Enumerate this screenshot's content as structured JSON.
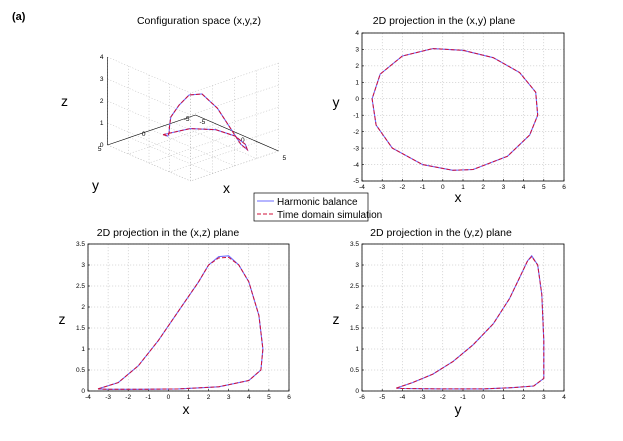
{
  "panel_label": "(a)",
  "legend": {
    "hb_label": "Harmonic balance",
    "td_label": "Time domain simulation",
    "hb_color": "#6b6bff",
    "td_color": "#d0103a"
  },
  "chart_data": [
    {
      "type": "line",
      "title": "Configuration space (x,y,z)",
      "projection": "3d",
      "xlabel": "x",
      "ylabel": "y",
      "zlabel": "z",
      "xlim": [
        -5,
        5
      ],
      "ylim": [
        -5,
        5
      ],
      "zlim": [
        0,
        4
      ],
      "xticks": [
        "-5",
        "0",
        "5"
      ],
      "yticks": [
        "-5",
        "0",
        "5"
      ],
      "zticks": [
        "0",
        "1",
        "2",
        "3",
        "4"
      ],
      "grid": true,
      "series": [
        {
          "name": "Harmonic balance",
          "x": [
            -3.5,
            -2.5,
            -1.5,
            -0.5,
            0.5,
            1.5,
            2.5,
            3.2,
            4.0,
            4.6,
            4.7,
            4.0,
            2.5,
            0.5,
            -1.5,
            -3.0,
            -3.5
          ],
          "y": [
            0.1,
            0.5,
            1.3,
            2.2,
            3.0,
            3.0,
            2.8,
            2.0,
            1.0,
            0.0,
            -1.0,
            -2.4,
            -3.6,
            -4.3,
            -4.0,
            -2.5,
            0.1
          ],
          "z": [
            0.05,
            0.2,
            0.6,
            1.2,
            1.9,
            2.6,
            3.2,
            3.25,
            2.6,
            1.6,
            0.8,
            0.25,
            0.08,
            0.04,
            0.04,
            0.05,
            0.05
          ]
        },
        {
          "name": "Time domain simulation",
          "x": [
            -3.5,
            -2.5,
            -1.5,
            -0.5,
            0.5,
            1.5,
            2.5,
            3.2,
            4.0,
            4.6,
            4.7,
            4.0,
            2.5,
            0.5,
            -1.5,
            -3.0,
            -3.5
          ],
          "y": [
            0.1,
            0.5,
            1.3,
            2.2,
            3.0,
            3.0,
            2.8,
            2.0,
            1.0,
            0.0,
            -1.0,
            -2.4,
            -3.6,
            -4.3,
            -4.0,
            -2.5,
            0.1
          ],
          "z": [
            0.05,
            0.2,
            0.6,
            1.2,
            1.9,
            2.6,
            3.2,
            3.25,
            2.6,
            1.6,
            0.8,
            0.25,
            0.08,
            0.04,
            0.04,
            0.05,
            0.05
          ]
        }
      ]
    },
    {
      "type": "line",
      "title": "2D projection in the (x,y) plane",
      "xlabel": "x",
      "ylabel": "y",
      "xlim": [
        -4,
        6
      ],
      "ylim": [
        -5,
        4
      ],
      "xticks": [
        "-4",
        "-3",
        "-2",
        "-1",
        "0",
        "1",
        "2",
        "3",
        "4",
        "5",
        "6"
      ],
      "yticks": [
        "-5",
        "-4",
        "-3",
        "-2",
        "-1",
        "0",
        "1",
        "2",
        "3",
        "4"
      ],
      "grid": true,
      "series": [
        {
          "name": "Harmonic balance",
          "x": [
            -0.5,
            1.0,
            2.5,
            3.8,
            4.6,
            4.7,
            4.3,
            3.2,
            1.5,
            0.5,
            -1.0,
            -2.5,
            -3.3,
            -3.5,
            -3.1,
            -2.0,
            -0.5
          ],
          "y": [
            3.05,
            2.95,
            2.5,
            1.6,
            0.4,
            -1.0,
            -2.2,
            -3.5,
            -4.3,
            -4.35,
            -4.0,
            -3.0,
            -1.6,
            0.0,
            1.5,
            2.6,
            3.05
          ]
        },
        {
          "name": "Time domain simulation",
          "x": [
            -0.5,
            1.0,
            2.5,
            3.8,
            4.6,
            4.7,
            4.3,
            3.2,
            1.5,
            0.5,
            -1.0,
            -2.5,
            -3.3,
            -3.5,
            -3.1,
            -2.0,
            -0.5
          ],
          "y": [
            3.05,
            2.95,
            2.5,
            1.6,
            0.4,
            -1.0,
            -2.2,
            -3.5,
            -4.3,
            -4.35,
            -4.0,
            -3.0,
            -1.6,
            0.0,
            1.5,
            2.6,
            3.05
          ]
        }
      ]
    },
    {
      "type": "line",
      "title": "2D projection in the (x,z) plane",
      "xlabel": "x",
      "ylabel": "z",
      "xlim": [
        -4,
        6
      ],
      "ylim": [
        0,
        3.5
      ],
      "xticks": [
        "-4",
        "-3",
        "-2",
        "-1",
        "0",
        "1",
        "2",
        "3",
        "4",
        "5",
        "6"
      ],
      "yticks": [
        "0",
        "0.5",
        "1",
        "1.5",
        "2",
        "2.5",
        "3",
        "3.5"
      ],
      "grid": true,
      "series": [
        {
          "name": "Harmonic balance",
          "x": [
            -3.5,
            -2.5,
            -1.5,
            -0.5,
            0.5,
            1.5,
            2.0,
            2.5,
            3.0,
            3.5,
            4.0,
            4.5,
            4.7,
            4.6,
            4.0,
            2.5,
            0.5,
            -1.5,
            -3.0,
            -3.5
          ],
          "y": [
            0.05,
            0.2,
            0.6,
            1.2,
            1.9,
            2.6,
            3.0,
            3.2,
            3.22,
            3.0,
            2.6,
            1.8,
            1.0,
            0.5,
            0.25,
            0.1,
            0.05,
            0.04,
            0.04,
            0.05
          ]
        },
        {
          "name": "Time domain simulation",
          "x": [
            -3.5,
            -2.5,
            -1.5,
            -0.5,
            0.5,
            1.5,
            2.0,
            2.5,
            3.0,
            3.5,
            4.0,
            4.5,
            4.7,
            4.6,
            4.0,
            2.5,
            0.5,
            -1.5,
            -3.0,
            -3.5
          ],
          "y": [
            0.05,
            0.2,
            0.6,
            1.2,
            1.9,
            2.6,
            3.0,
            3.17,
            3.18,
            3.0,
            2.6,
            1.8,
            1.0,
            0.5,
            0.25,
            0.1,
            0.05,
            0.04,
            0.04,
            0.05
          ]
        }
      ]
    },
    {
      "type": "line",
      "title": "2D projection in the (y,z) plane",
      "xlabel": "y",
      "ylabel": "z",
      "xlim": [
        -6,
        4
      ],
      "ylim": [
        0,
        3.5
      ],
      "xticks": [
        "-6",
        "-5",
        "-4",
        "-3",
        "-2",
        "-1",
        "0",
        "1",
        "2",
        "3",
        "4"
      ],
      "yticks": [
        "0",
        "0.5",
        "1",
        "1.5",
        "2",
        "2.5",
        "3",
        "3.5"
      ],
      "grid": true,
      "series": [
        {
          "name": "Harmonic balance",
          "y_vals_note": "",
          "x": [
            -4.3,
            -3.5,
            -2.5,
            -1.5,
            -0.5,
            0.5,
            1.3,
            1.8,
            2.2,
            2.4,
            2.7,
            2.9,
            3.0,
            3.0,
            2.5,
            1.5,
            0.0,
            -2.0,
            -4.0,
            -4.3
          ],
          "y": [
            0.07,
            0.2,
            0.4,
            0.7,
            1.1,
            1.6,
            2.2,
            2.7,
            3.1,
            3.22,
            3.0,
            2.3,
            1.2,
            0.3,
            0.12,
            0.08,
            0.05,
            0.05,
            0.06,
            0.07
          ]
        },
        {
          "name": "Time domain simulation",
          "x": [
            -4.3,
            -3.5,
            -2.5,
            -1.5,
            -0.5,
            0.5,
            1.3,
            1.8,
            2.2,
            2.4,
            2.7,
            2.9,
            3.0,
            3.0,
            2.5,
            1.5,
            0.0,
            -2.0,
            -4.0,
            -4.3
          ],
          "y": [
            0.07,
            0.2,
            0.4,
            0.7,
            1.1,
            1.6,
            2.2,
            2.7,
            3.1,
            3.2,
            3.0,
            2.3,
            1.2,
            0.3,
            0.12,
            0.08,
            0.05,
            0.05,
            0.06,
            0.07
          ]
        }
      ]
    }
  ]
}
